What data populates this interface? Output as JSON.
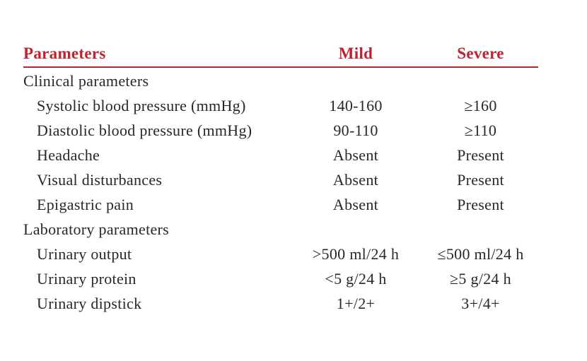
{
  "table": {
    "accent_color": "#c2212f",
    "text_color": "#2b2726",
    "header": {
      "parameters": "Parameters",
      "mild": "Mild",
      "severe": "Severe"
    },
    "rows": [
      {
        "label": "Clinical parameters",
        "mild": "",
        "severe": "",
        "section": true
      },
      {
        "label": "Systolic blood pressure (mmHg)",
        "mild": "140-160",
        "severe": "≥160",
        "section": false
      },
      {
        "label": "Diastolic blood pressure (mmHg)",
        "mild": "90-110",
        "severe": "≥110",
        "section": false
      },
      {
        "label": "Headache",
        "mild": "Absent",
        "severe": "Present",
        "section": false
      },
      {
        "label": "Visual disturbances",
        "mild": "Absent",
        "severe": "Present",
        "section": false
      },
      {
        "label": "Epigastric pain",
        "mild": "Absent",
        "severe": "Present",
        "section": false
      },
      {
        "label": "Laboratory parameters",
        "mild": "",
        "severe": "",
        "section": true
      },
      {
        "label": "Urinary output",
        "mild": ">500 ml/24 h",
        "severe": "≤500 ml/24 h",
        "section": false
      },
      {
        "label": "Urinary protein",
        "mild": "<5 g/24 h",
        "severe": "≥5 g/24 h",
        "section": false
      },
      {
        "label": "Urinary dipstick",
        "mild": "1+/2+",
        "severe": "3+/4+",
        "section": false
      }
    ]
  }
}
